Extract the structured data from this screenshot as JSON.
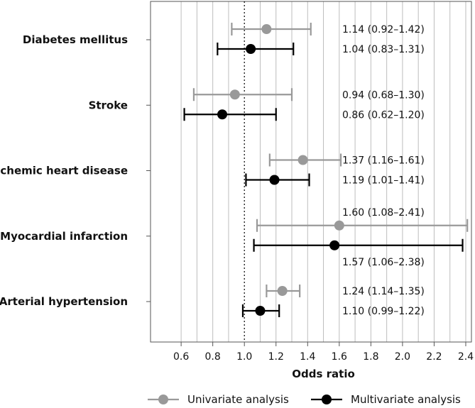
{
  "chart_data": {
    "type": "forest",
    "xlabel": "Odds ratio",
    "xlim": [
      0.5,
      2.5
    ],
    "xticks": [
      0.6,
      0.8,
      1.0,
      1.2,
      1.4,
      1.6,
      1.8,
      2.0,
      2.2,
      2.4
    ],
    "xtick_labels": [
      "0.6",
      "0.8",
      "1.0",
      "1.2",
      "1.4",
      "1.6",
      "1.8",
      "2.0",
      "2.2",
      "2.4"
    ],
    "reference_line": 1.0,
    "grid": true,
    "legend": {
      "placement": "bottom",
      "entries": [
        "Univariate analysis",
        "Multivariate analysis"
      ]
    },
    "series": [
      {
        "name": "Univariate analysis",
        "color": "#999999"
      },
      {
        "name": "Multivariate analysis",
        "color": "#000000"
      }
    ],
    "categories": [
      {
        "name": "Diabetes mellitus",
        "univariate": {
          "or": 1.14,
          "lo": 0.92,
          "hi": 1.42,
          "label": "1.14 (0.92–1.42)"
        },
        "multivariate": {
          "or": 1.04,
          "lo": 0.83,
          "hi": 1.31,
          "label": "1.04 (0.83–1.31)"
        }
      },
      {
        "name": "Stroke",
        "univariate": {
          "or": 0.94,
          "lo": 0.68,
          "hi": 1.3,
          "label": "0.94 (0.68–1.30)"
        },
        "multivariate": {
          "or": 0.86,
          "lo": 0.62,
          "hi": 1.2,
          "label": "0.86 (0.62–1.20)"
        }
      },
      {
        "name": "Ischemic heart disease",
        "univariate": {
          "or": 1.37,
          "lo": 1.16,
          "hi": 1.61,
          "label": "1.37 (1.16–1.61)"
        },
        "multivariate": {
          "or": 1.19,
          "lo": 1.01,
          "hi": 1.41,
          "label": "1.19 (1.01–1.41)"
        }
      },
      {
        "name": "Myocardial infarction",
        "univariate": {
          "or": 1.6,
          "lo": 1.08,
          "hi": 2.41,
          "label": "1.60 (1.08–2.41)"
        },
        "multivariate": {
          "or": 1.57,
          "lo": 1.06,
          "hi": 2.38,
          "label": "1.57 (1.06–2.38)"
        }
      },
      {
        "name": "Arterial hypertension",
        "univariate": {
          "or": 1.24,
          "lo": 1.14,
          "hi": 1.35,
          "label": "1.24 (1.14–1.35)"
        },
        "multivariate": {
          "or": 1.1,
          "lo": 0.99,
          "hi": 1.22,
          "label": "1.10 (0.99–1.22)"
        }
      }
    ]
  }
}
